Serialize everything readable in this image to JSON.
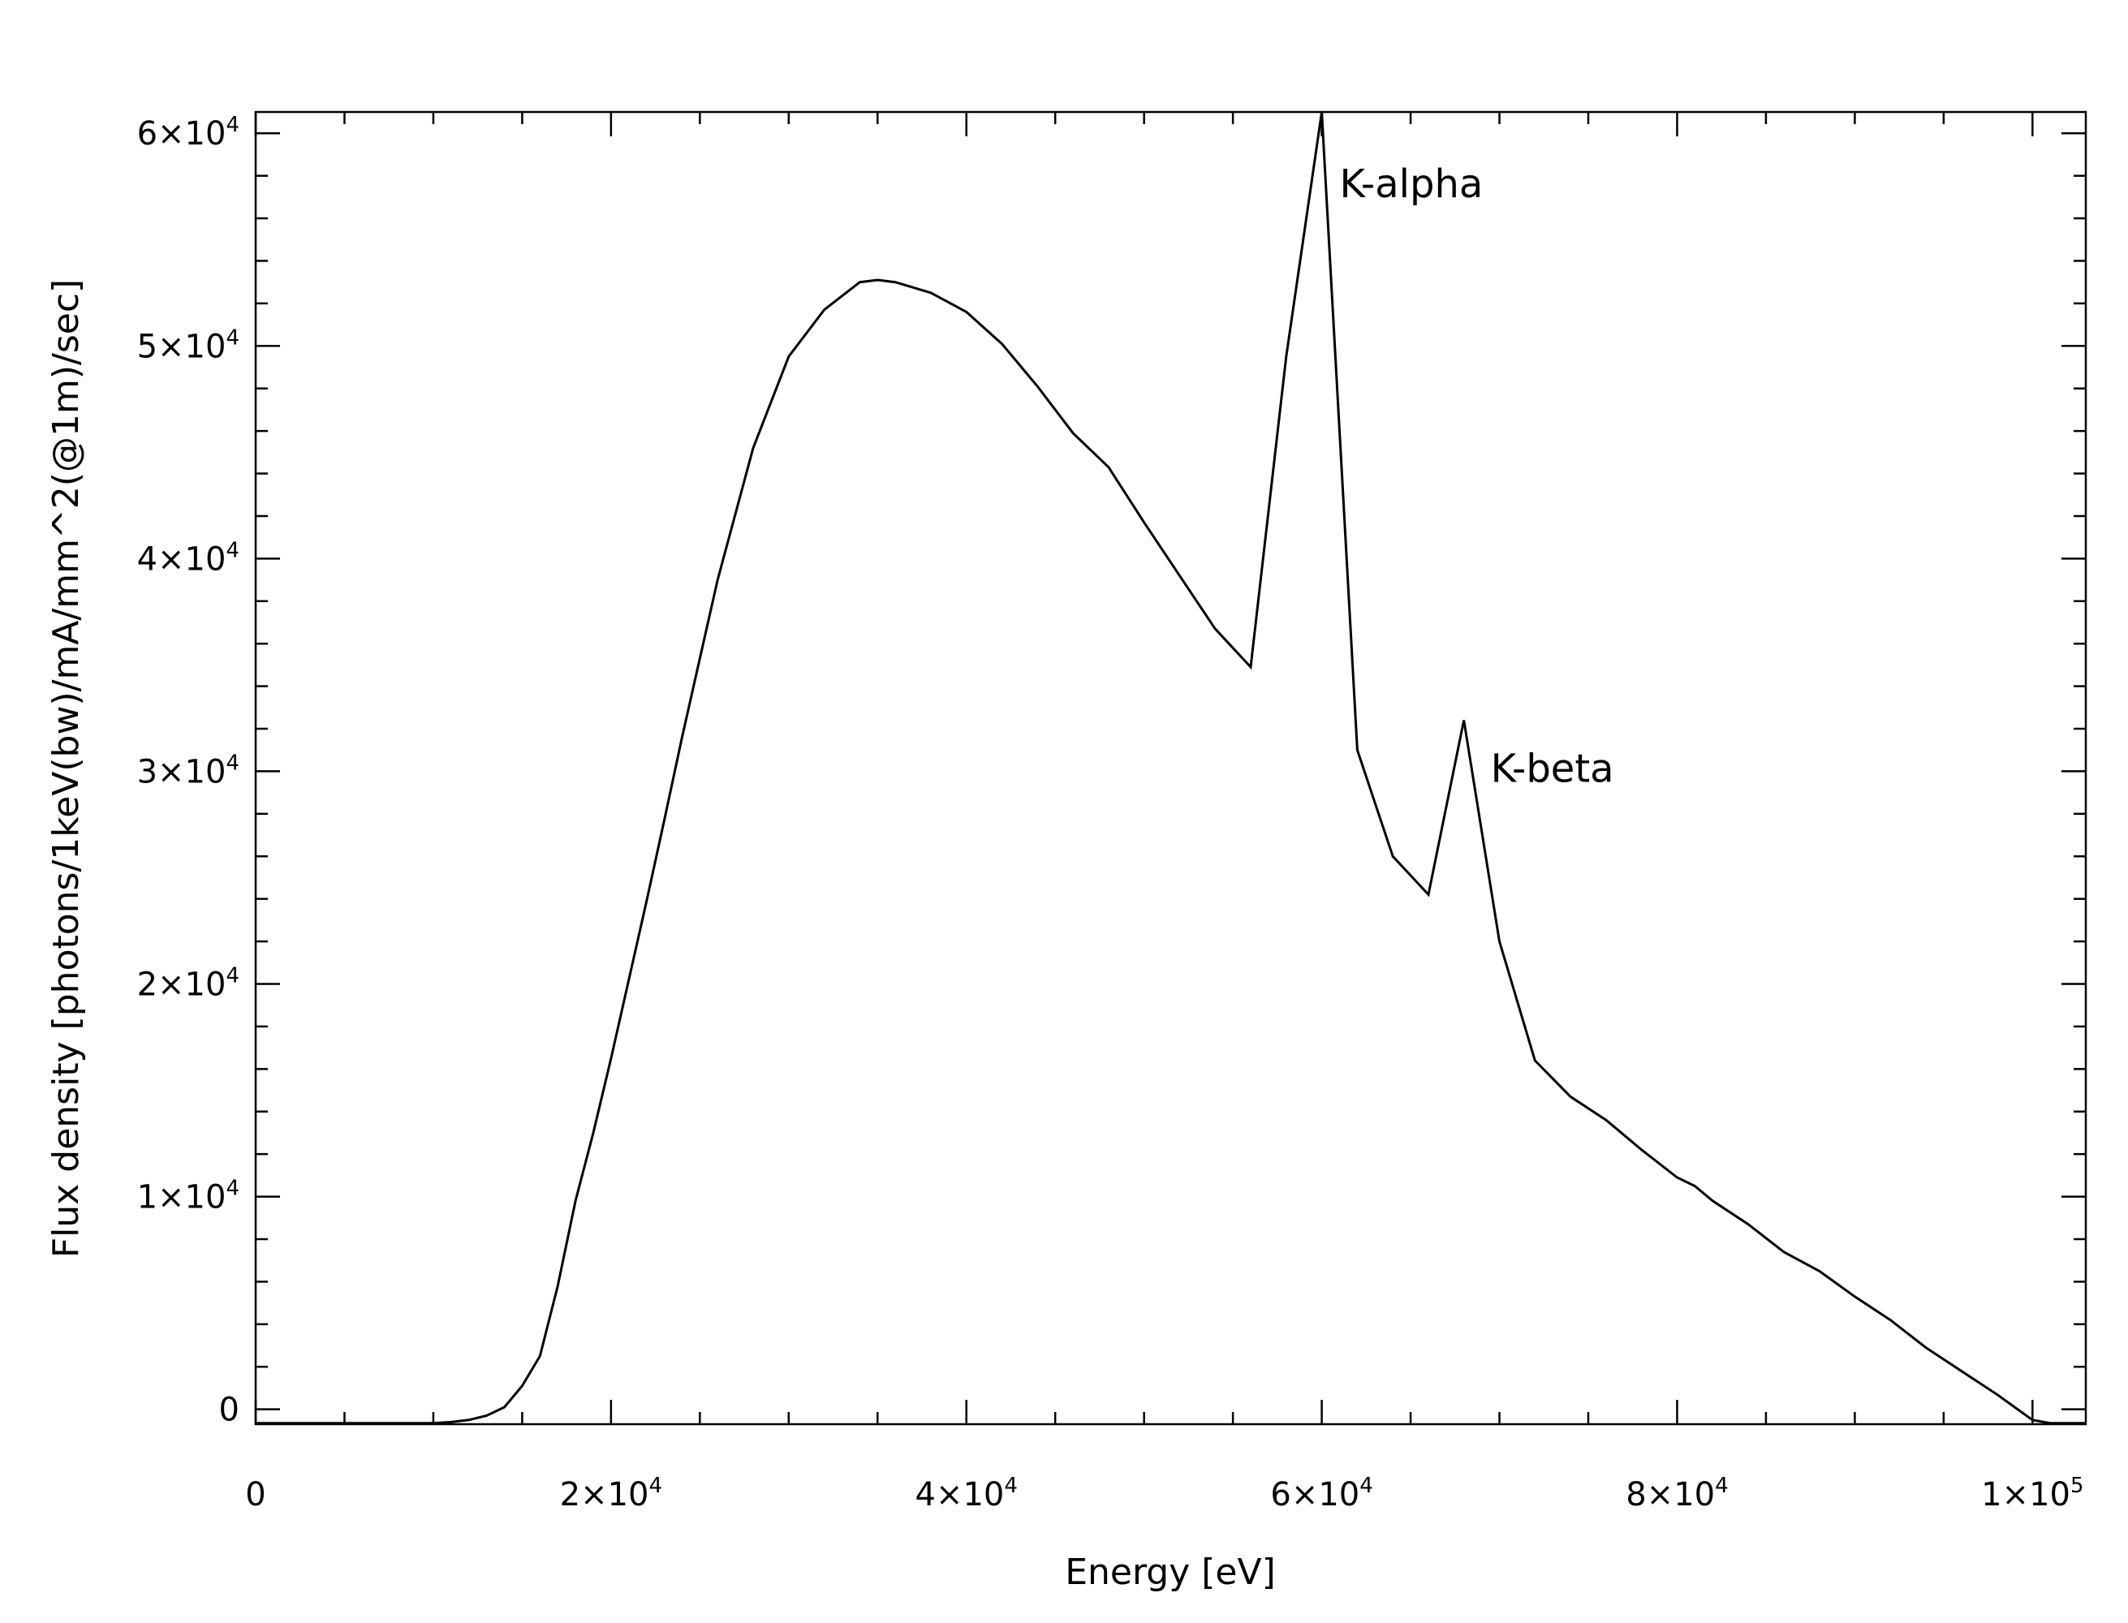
{
  "chart_data": {
    "type": "line",
    "title": "",
    "xlabel": "Energy [eV]",
    "ylabel": "Flux density [photons/1keV(bw)/mA/mm^2(@1m)/sec]",
    "xlim": [
      0,
      103000
    ],
    "ylim": [
      -700,
      61000
    ],
    "grid": false,
    "x_ticks": [
      {
        "value": 0,
        "mantissa": "0",
        "exponent": ""
      },
      {
        "value": 20000,
        "mantissa": "2×10",
        "exponent": "4"
      },
      {
        "value": 40000,
        "mantissa": "4×10",
        "exponent": "4"
      },
      {
        "value": 60000,
        "mantissa": "6×10",
        "exponent": "4"
      },
      {
        "value": 80000,
        "mantissa": "8×10",
        "exponent": "4"
      },
      {
        "value": 100000,
        "mantissa": "1×10",
        "exponent": "5"
      }
    ],
    "y_ticks": [
      {
        "value": 0,
        "mantissa": "0",
        "exponent": ""
      },
      {
        "value": 10000,
        "mantissa": "1×10",
        "exponent": "4"
      },
      {
        "value": 20000,
        "mantissa": "2×10",
        "exponent": "4"
      },
      {
        "value": 30000,
        "mantissa": "3×10",
        "exponent": "4"
      },
      {
        "value": 40000,
        "mantissa": "4×10",
        "exponent": "4"
      },
      {
        "value": 50000,
        "mantissa": "5×10",
        "exponent": "4"
      },
      {
        "value": 60000,
        "mantissa": "6×10",
        "exponent": "4"
      }
    ],
    "annotations": [
      {
        "text": "K-alpha",
        "x": 61000,
        "y": 57000
      },
      {
        "text": "K-beta",
        "x": 69500,
        "y": 29500
      }
    ],
    "series": [
      {
        "color": "#000000",
        "points": [
          [
            0,
            -650
          ],
          [
            2000,
            -650
          ],
          [
            4000,
            -650
          ],
          [
            6000,
            -650
          ],
          [
            8000,
            -650
          ],
          [
            10000,
            -650
          ],
          [
            11000,
            -600
          ],
          [
            12000,
            -500
          ],
          [
            13000,
            -300
          ],
          [
            14000,
            100
          ],
          [
            15000,
            1100
          ],
          [
            16000,
            2500
          ],
          [
            17000,
            5800
          ],
          [
            18000,
            9800
          ],
          [
            19000,
            13000
          ],
          [
            20000,
            16500
          ],
          [
            21000,
            20200
          ],
          [
            22000,
            23900
          ],
          [
            23000,
            27700
          ],
          [
            24000,
            31600
          ],
          [
            25000,
            35300
          ],
          [
            26000,
            39000
          ],
          [
            28000,
            45200
          ],
          [
            30000,
            49500
          ],
          [
            32000,
            51700
          ],
          [
            34000,
            53000
          ],
          [
            35000,
            53100
          ],
          [
            36000,
            53000
          ],
          [
            38000,
            52500
          ],
          [
            40000,
            51600
          ],
          [
            42000,
            50100
          ],
          [
            44000,
            48100
          ],
          [
            46000,
            45900
          ],
          [
            48000,
            44300
          ],
          [
            50000,
            41700
          ],
          [
            52000,
            39200
          ],
          [
            54000,
            36700
          ],
          [
            56000,
            34900
          ],
          [
            58000,
            49500
          ],
          [
            60000,
            61000
          ],
          [
            62000,
            31000
          ],
          [
            64000,
            26000
          ],
          [
            66000,
            24200
          ],
          [
            68000,
            32400
          ],
          [
            70000,
            22000
          ],
          [
            72000,
            16400
          ],
          [
            74000,
            14700
          ],
          [
            76000,
            13600
          ],
          [
            78000,
            12200
          ],
          [
            80000,
            10900
          ],
          [
            81000,
            10500
          ],
          [
            82000,
            9800
          ],
          [
            84000,
            8700
          ],
          [
            86000,
            7400
          ],
          [
            88000,
            6500
          ],
          [
            90000,
            5300
          ],
          [
            92000,
            4200
          ],
          [
            94000,
            2900
          ],
          [
            96000,
            1800
          ],
          [
            98000,
            700
          ],
          [
            100000,
            -500
          ],
          [
            101000,
            -650
          ],
          [
            103000,
            -650
          ]
        ]
      }
    ]
  }
}
